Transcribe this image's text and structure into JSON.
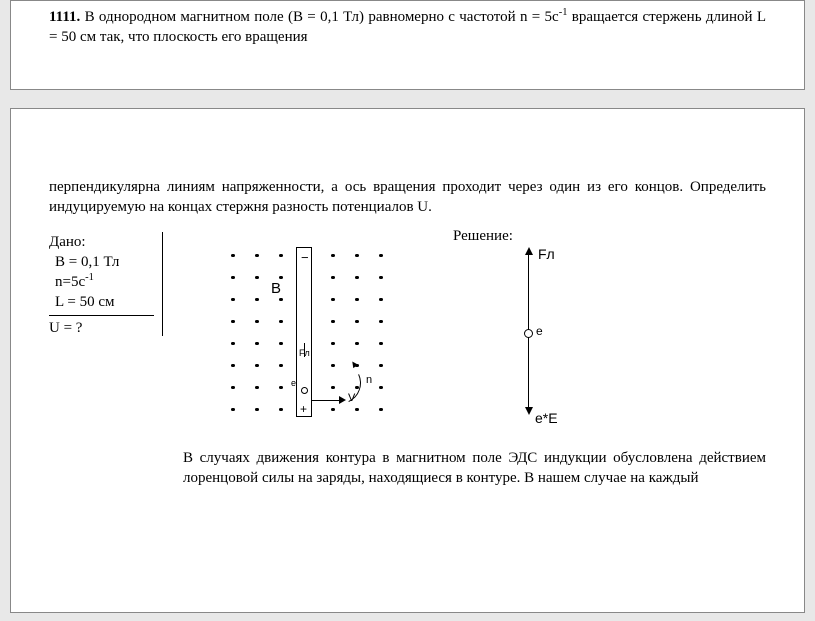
{
  "problem": {
    "number": "1111.",
    "text_part1": "В однородном магнитном поле (В = 0,1 Тл)  равномерно с частотой n = 5с",
    "sup1": "-1",
    "text_part1b": " вращается стержень длиной L = 50 см так, что плоскость его вращения",
    "text_part2": "перпендикулярна линиям напряженности, а ось вращения проходит через один из его концов. Определить индуцируемую на концах стержня разность потенциалов U."
  },
  "given": {
    "header": "Дано:",
    "lines": [
      {
        "html": "В = 0,1 Тл"
      },
      {
        "html": "n=5с<sup>-1</sup>"
      },
      {
        "html": "L = 50 см"
      }
    ],
    "find": "U = ?"
  },
  "solution": {
    "label": "Решение:",
    "text": "В случаях движения контура в магнитном поле ЭДС индукции обусловлена действием лоренцовой силы на заряды, находящиеся в контуре. В нашем случае на каждый"
  },
  "diagram": {
    "dot_grid": {
      "cols": [
        48,
        72,
        96,
        148,
        172,
        196
      ],
      "rows": [
        22,
        44,
        66,
        88,
        110,
        132,
        154,
        176
      ]
    },
    "labels": {
      "B": "B",
      "Fl_big": "Fл",
      "Fl_small": "Fл",
      "e_small": "e",
      "e_big": "e",
      "eE": "e*E",
      "V": "V",
      "n": "n",
      "minus": "−",
      "plus": "+"
    }
  },
  "style": {
    "page_bg": "#ffffff",
    "body_bg": "#e8e8e8",
    "text_color": "#000000",
    "font_family_body": "Times New Roman, serif",
    "font_family_diagram": "Arial, sans-serif",
    "font_size_body": 15,
    "font_size_diagram_small": 11
  }
}
